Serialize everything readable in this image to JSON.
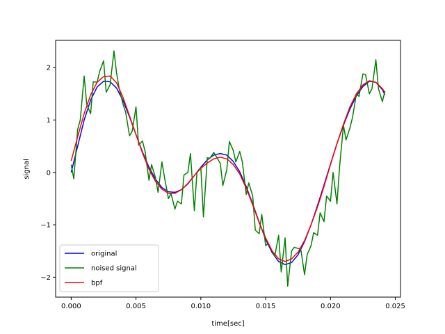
{
  "chart_data": {
    "type": "line",
    "title": "",
    "xlabel": "time[sec]",
    "ylabel": "signal",
    "xlim": [
      -0.0012,
      0.0254
    ],
    "ylim": [
      -2.38,
      2.52
    ],
    "x_ticks": [
      0.0,
      0.005,
      0.01,
      0.015,
      0.02,
      0.025
    ],
    "x_tick_labels": [
      "0.000",
      "0.005",
      "0.010",
      "0.015",
      "0.020",
      "0.025"
    ],
    "y_ticks": [
      -2,
      -1,
      0,
      1,
      2
    ],
    "y_tick_labels": [
      "−2",
      "−1",
      "0",
      "1",
      "2"
    ],
    "grid": false,
    "legend_position": "lower-left",
    "series": [
      {
        "name": "original",
        "color": "#0000ff",
        "x": [
          0.0,
          0.0005,
          0.001,
          0.0015,
          0.002,
          0.0025,
          0.003,
          0.0035,
          0.004,
          0.0045,
          0.005,
          0.0055,
          0.006,
          0.0065,
          0.007,
          0.0075,
          0.008,
          0.0085,
          0.009,
          0.0095,
          0.01,
          0.0105,
          0.011,
          0.0115,
          0.012,
          0.0125,
          0.013,
          0.0135,
          0.014,
          0.0145,
          0.015,
          0.0155,
          0.016,
          0.0165,
          0.017,
          0.0175,
          0.018,
          0.0185,
          0.019,
          0.0195,
          0.02,
          0.0205,
          0.021,
          0.0215,
          0.022,
          0.0225,
          0.023,
          0.0235,
          0.024,
          0.0242
        ],
        "y": [
          0.0,
          0.5,
          1.0,
          1.38,
          1.63,
          1.74,
          1.73,
          1.61,
          1.37,
          1.06,
          0.72,
          0.39,
          0.1,
          -0.13,
          -0.29,
          -0.37,
          -0.38,
          -0.33,
          -0.22,
          -0.06,
          0.1,
          0.24,
          0.33,
          0.36,
          0.33,
          0.21,
          0.01,
          -0.27,
          -0.6,
          -0.95,
          -1.28,
          -1.53,
          -1.7,
          -1.76,
          -1.72,
          -1.57,
          -1.32,
          -1.0,
          -0.63,
          -0.24,
          0.16,
          0.55,
          0.9,
          1.21,
          1.46,
          1.64,
          1.74,
          1.72,
          1.58,
          1.48
        ]
      },
      {
        "name": "noised signal",
        "color": "#008000",
        "x": [
          0.0,
          0.0002,
          0.0005,
          0.0007,
          0.001,
          0.0012,
          0.0015,
          0.0017,
          0.002,
          0.0022,
          0.0025,
          0.0027,
          0.003,
          0.0033,
          0.0035,
          0.0037,
          0.004,
          0.0042,
          0.0045,
          0.0047,
          0.005,
          0.0052,
          0.0055,
          0.0057,
          0.006,
          0.0062,
          0.0065,
          0.0067,
          0.007,
          0.0072,
          0.0075,
          0.0077,
          0.008,
          0.0082,
          0.0085,
          0.0087,
          0.009,
          0.0092,
          0.0095,
          0.0097,
          0.01,
          0.0102,
          0.0105,
          0.0107,
          0.011,
          0.0112,
          0.0115,
          0.0117,
          0.012,
          0.0122,
          0.0125,
          0.0127,
          0.013,
          0.0132,
          0.0135,
          0.0137,
          0.014,
          0.0142,
          0.0145,
          0.0147,
          0.015,
          0.0152,
          0.0155,
          0.0157,
          0.016,
          0.0162,
          0.0165,
          0.0167,
          0.017,
          0.0172,
          0.0175,
          0.0177,
          0.018,
          0.0182,
          0.0185,
          0.0187,
          0.019,
          0.0192,
          0.0195,
          0.0197,
          0.02,
          0.0202,
          0.0205,
          0.0207,
          0.021,
          0.0212,
          0.0215,
          0.0217,
          0.022,
          0.0222,
          0.0225,
          0.0227,
          0.023,
          0.0232,
          0.0235,
          0.0237,
          0.024,
          0.0242
        ],
        "y": [
          0.15,
          -0.12,
          0.82,
          1.0,
          1.84,
          1.3,
          1.12,
          1.73,
          1.72,
          1.93,
          2.13,
          1.53,
          1.67,
          2.32,
          1.9,
          1.6,
          1.3,
          1.15,
          0.7,
          0.78,
          1.25,
          0.52,
          0.6,
          0.4,
          -0.15,
          0.15,
          -0.1,
          -0.38,
          0.2,
          -0.1,
          -0.5,
          -0.4,
          -0.7,
          -0.55,
          -0.6,
          -0.05,
          0.0,
          0.36,
          -0.73,
          0.0,
          0.1,
          -0.85,
          0.28,
          0.27,
          0.38,
          0.3,
          0.17,
          -0.25,
          0.05,
          0.59,
          0.42,
          0.2,
          0.4,
          0.2,
          -0.42,
          -0.2,
          -0.45,
          -1.1,
          -1.17,
          -0.8,
          -1.4,
          -1.35,
          -1.5,
          -1.6,
          -1.2,
          -1.9,
          -1.25,
          -2.17,
          -1.5,
          -1.43,
          -1.45,
          -1.45,
          -1.95,
          -1.57,
          -1.4,
          -1.15,
          -1.2,
          -0.77,
          -0.94,
          -0.45,
          -0.55,
          0.0,
          -0.6,
          0.1,
          0.9,
          0.62,
          0.85,
          1.05,
          1.5,
          1.45,
          1.88,
          1.87,
          1.5,
          1.6,
          2.15,
          1.6,
          1.35,
          1.55
        ]
      },
      {
        "name": "bpf",
        "color": "#ff0000",
        "x": [
          0.0,
          0.0005,
          0.001,
          0.0015,
          0.002,
          0.0025,
          0.003,
          0.0035,
          0.004,
          0.0045,
          0.005,
          0.0055,
          0.006,
          0.0065,
          0.007,
          0.0075,
          0.008,
          0.0085,
          0.009,
          0.0095,
          0.01,
          0.0105,
          0.011,
          0.0115,
          0.012,
          0.0125,
          0.013,
          0.0135,
          0.014,
          0.0145,
          0.015,
          0.0155,
          0.016,
          0.0165,
          0.017,
          0.0175,
          0.018,
          0.0185,
          0.019,
          0.0195,
          0.02,
          0.0205,
          0.021,
          0.0215,
          0.022,
          0.0225,
          0.023,
          0.0235,
          0.024,
          0.0242
        ],
        "y": [
          0.22,
          0.68,
          1.12,
          1.48,
          1.72,
          1.83,
          1.84,
          1.71,
          1.43,
          1.08,
          0.72,
          0.37,
          0.06,
          -0.17,
          -0.32,
          -0.4,
          -0.4,
          -0.33,
          -0.21,
          -0.06,
          0.08,
          0.18,
          0.26,
          0.29,
          0.26,
          0.15,
          -0.03,
          -0.3,
          -0.62,
          -0.96,
          -1.25,
          -1.5,
          -1.65,
          -1.7,
          -1.65,
          -1.52,
          -1.3,
          -1.0,
          -0.66,
          -0.27,
          0.15,
          0.55,
          0.92,
          1.25,
          1.5,
          1.67,
          1.75,
          1.72,
          1.6,
          1.52
        ]
      }
    ]
  }
}
